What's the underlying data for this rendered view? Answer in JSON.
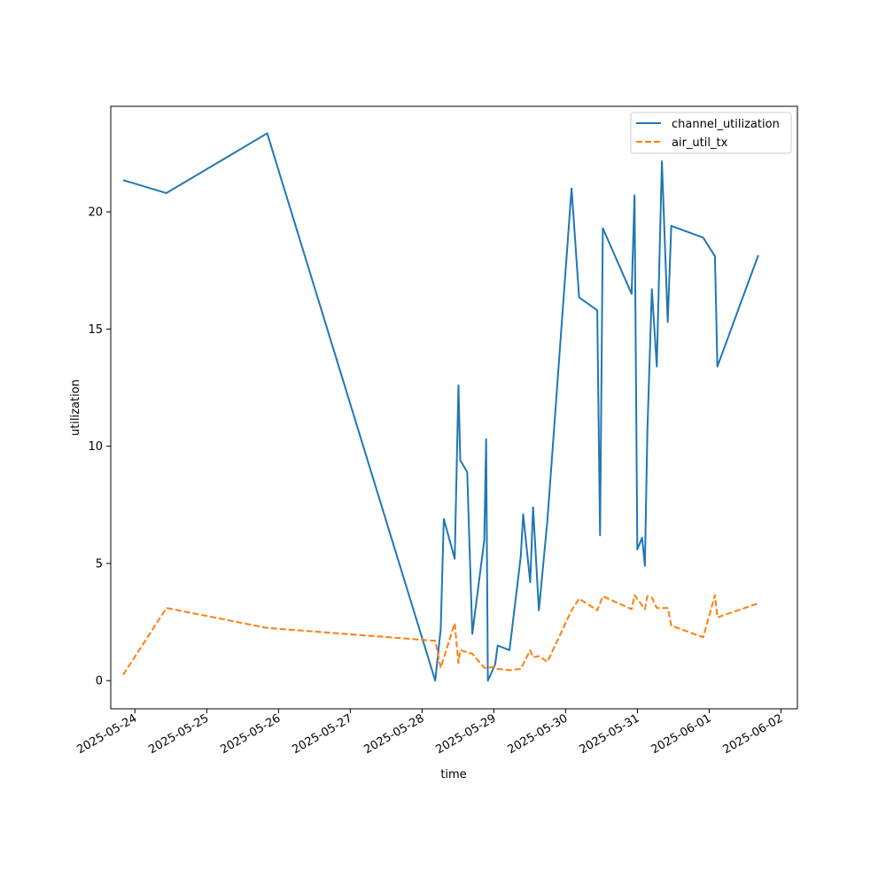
{
  "chart_data": {
    "type": "line",
    "xlabel": "time",
    "ylabel": "utilization",
    "x_ticks": [
      "2025-05-24",
      "2025-05-25",
      "2025-05-26",
      "2025-05-27",
      "2025-05-28",
      "2025-05-29",
      "2025-05-30",
      "2025-05-31",
      "2025-06-01",
      "2025-06-02"
    ],
    "y_ticks": [
      0,
      5,
      10,
      15,
      20
    ],
    "xlim": [
      "2025-05-23T15:55",
      "2025-06-02T05:29"
    ],
    "ylim": [
      -1.2,
      24.5
    ],
    "legend_position": "top-right",
    "colors": {
      "channel_utilization": "#1f77b4",
      "air_util_tx": "#ff7f0e"
    },
    "series": [
      {
        "name": "channel_utilization",
        "style": "solid",
        "points": [
          [
            "2025-05-23T20:04",
            21.35
          ],
          [
            "2025-05-24T10:32",
            20.8
          ],
          [
            "2025-05-25T20:13",
            23.35
          ],
          [
            "2025-05-28T04:24",
            0.0
          ],
          [
            "2025-05-28T06:14",
            2.2
          ],
          [
            "2025-05-28T07:16",
            6.9
          ],
          [
            "2025-05-28T10:55",
            5.2
          ],
          [
            "2025-05-28T12:10",
            12.6
          ],
          [
            "2025-05-28T12:46",
            9.4
          ],
          [
            "2025-05-28T15:05",
            8.9
          ],
          [
            "2025-05-28T16:48",
            2.0
          ],
          [
            "2025-05-28T20:48",
            6.0
          ],
          [
            "2025-05-28T21:25",
            10.3
          ],
          [
            "2025-05-28T22:00",
            0.0
          ],
          [
            "2025-05-29T00:27",
            0.7
          ],
          [
            "2025-05-29T01:16",
            1.5
          ],
          [
            "2025-05-29T05:14",
            1.3
          ],
          [
            "2025-05-29T09:00",
            5.3
          ],
          [
            "2025-05-29T09:48",
            7.1
          ],
          [
            "2025-05-29T12:09",
            4.2
          ],
          [
            "2025-05-29T13:07",
            7.4
          ],
          [
            "2025-05-29T15:03",
            3.0
          ],
          [
            "2025-05-29T17:53",
            6.8
          ],
          [
            "2025-05-30T01:59",
            21.0
          ],
          [
            "2025-05-30T04:30",
            16.35
          ],
          [
            "2025-05-30T10:34",
            15.8
          ],
          [
            "2025-05-30T11:30",
            6.2
          ],
          [
            "2025-05-30T12:26",
            19.3
          ],
          [
            "2025-05-30T22:04",
            16.5
          ],
          [
            "2025-05-30T23:02",
            20.7
          ],
          [
            "2025-05-30T23:58",
            5.6
          ],
          [
            "2025-05-31T01:34",
            6.1
          ],
          [
            "2025-05-31T02:30",
            4.9
          ],
          [
            "2025-05-31T03:19",
            10.6
          ],
          [
            "2025-05-31T04:50",
            16.7
          ],
          [
            "2025-05-31T06:28",
            13.4
          ],
          [
            "2025-05-31T08:11",
            22.15
          ],
          [
            "2025-05-31T10:08",
            15.3
          ],
          [
            "2025-05-31T11:19",
            19.4
          ],
          [
            "2025-05-31T21:59",
            18.9
          ],
          [
            "2025-06-01T01:55",
            18.1
          ],
          [
            "2025-06-01T02:44",
            13.4
          ],
          [
            "2025-06-01T16:25",
            18.15
          ]
        ]
      },
      {
        "name": "air_util_tx",
        "style": "dashed",
        "points": [
          [
            "2025-05-23T20:04",
            0.25
          ],
          [
            "2025-05-24T10:32",
            3.1
          ],
          [
            "2025-05-25T20:13",
            2.25
          ],
          [
            "2025-05-28T04:24",
            1.7
          ],
          [
            "2025-05-28T06:14",
            0.55
          ],
          [
            "2025-05-28T10:55",
            2.45
          ],
          [
            "2025-05-28T12:10",
            0.75
          ],
          [
            "2025-05-28T12:46",
            1.3
          ],
          [
            "2025-05-28T16:48",
            1.15
          ],
          [
            "2025-05-28T20:48",
            0.55
          ],
          [
            "2025-05-28T22:00",
            0.55
          ],
          [
            "2025-05-29T00:27",
            0.6
          ],
          [
            "2025-05-29T01:16",
            0.5
          ],
          [
            "2025-05-29T05:14",
            0.45
          ],
          [
            "2025-05-29T09:00",
            0.5
          ],
          [
            "2025-05-29T12:09",
            1.3
          ],
          [
            "2025-05-29T13:07",
            1.0
          ],
          [
            "2025-05-29T15:03",
            1.05
          ],
          [
            "2025-05-29T17:53",
            0.8
          ],
          [
            "2025-05-30T01:59",
            3.0
          ],
          [
            "2025-05-30T04:30",
            3.5
          ],
          [
            "2025-05-30T10:34",
            3.0
          ],
          [
            "2025-05-30T12:26",
            3.6
          ],
          [
            "2025-05-30T22:04",
            3.05
          ],
          [
            "2025-05-30T23:02",
            3.65
          ],
          [
            "2025-05-31T02:30",
            3.05
          ],
          [
            "2025-05-31T03:19",
            3.6
          ],
          [
            "2025-05-31T04:50",
            3.55
          ],
          [
            "2025-05-31T06:28",
            3.1
          ],
          [
            "2025-05-31T08:11",
            3.1
          ],
          [
            "2025-05-31T10:08",
            3.1
          ],
          [
            "2025-05-31T11:19",
            2.35
          ],
          [
            "2025-05-31T21:59",
            1.85
          ],
          [
            "2025-06-01T01:55",
            3.65
          ],
          [
            "2025-06-01T02:44",
            2.7
          ],
          [
            "2025-06-01T16:25",
            3.3
          ]
        ]
      }
    ]
  }
}
